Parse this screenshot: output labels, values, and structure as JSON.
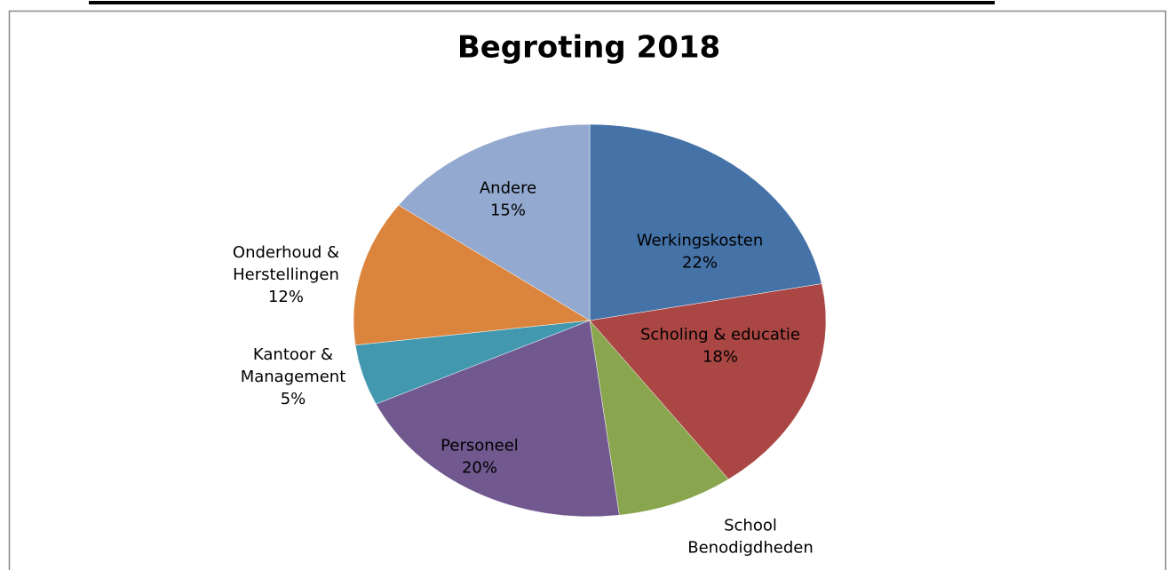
{
  "chart_data": {
    "type": "pie",
    "title": "Begroting 2018",
    "categories": [
      "Werkingskosten",
      "Scholing & educatie",
      "School Benodigdheden",
      "Personeel",
      "Kantoor & Management",
      "Onderhoud & Herstellingen",
      "Andere"
    ],
    "values": [
      22,
      18,
      8,
      20,
      5,
      12,
      15
    ],
    "value_labels": [
      "22%",
      "18%",
      null,
      "20%",
      "5%",
      "12%",
      "15%"
    ],
    "colors": [
      "#4572a7",
      "#aa4643",
      "#89a54e",
      "#71588f",
      "#4198af",
      "#db843d",
      "#93a9cf"
    ]
  }
}
